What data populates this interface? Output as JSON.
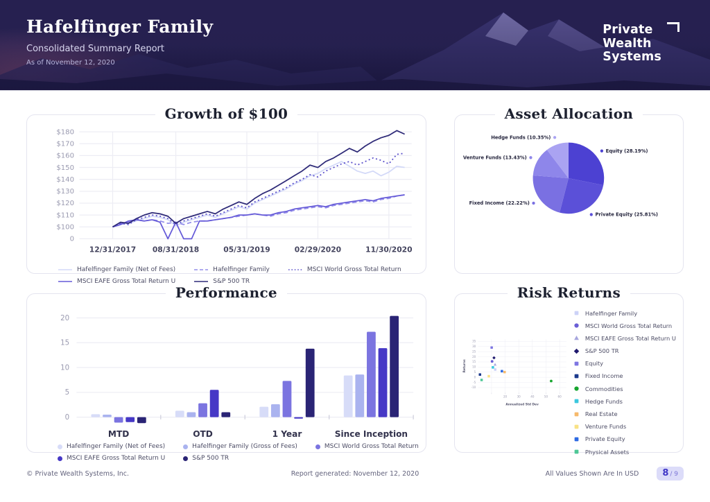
{
  "header": {
    "title": "Hafelfinger Family",
    "subtitle": "Consolidated Summary Report",
    "as_of": "As of November 12, 2020",
    "logo_lines": [
      "Private",
      "Wealth",
      "Systems"
    ]
  },
  "footer": {
    "copyright": "© Private Wealth Systems, Inc.",
    "generated": "Report generated: November 12, 2020",
    "values_note": "All Values Shown Are In USD",
    "page": "8",
    "of": "/ 9"
  },
  "chart_data": [
    {
      "type": "line",
      "title": "Growth of $100",
      "y_axis": {
        "tick_labels": [
          "$180",
          "$170",
          "$160",
          "$150",
          "$140",
          "$130",
          "$120",
          "$110",
          "$100",
          "0"
        ],
        "tick_values": [
          180,
          170,
          160,
          150,
          140,
          130,
          120,
          110,
          100,
          0
        ]
      },
      "x_axis": {
        "tick_labels": [
          "12/31/2017",
          "08/31/2018",
          "05/31/2019",
          "02/29/2020",
          "11/30/2020"
        ],
        "tick_indices": [
          0,
          8,
          17,
          26,
          35
        ]
      },
      "series": [
        {
          "name": "Hafelfinger Family (Net of Fees)",
          "style": "solid",
          "color": "#d3d9f8",
          "values": [
            100,
            102,
            103,
            105,
            107,
            109,
            108,
            106,
            101,
            104,
            106,
            108,
            110,
            108,
            111,
            114,
            117,
            115,
            120,
            123,
            126,
            129,
            132,
            136,
            139,
            143,
            145,
            149,
            152,
            155,
            151,
            147,
            145,
            147,
            143,
            146,
            151,
            150
          ]
        },
        {
          "name": "Hafelfinger Family",
          "style": "dashed",
          "color": "#948eea",
          "values": [
            100,
            103,
            104,
            106,
            105,
            106,
            105,
            103,
            104,
            102,
            104,
            105,
            105,
            106,
            107,
            108,
            109,
            110,
            111,
            110,
            109,
            111,
            112,
            114,
            115,
            116,
            117,
            116,
            118,
            119,
            120,
            121,
            122,
            121,
            123,
            124,
            126,
            127
          ]
        },
        {
          "name": "MSCI World Gross Total Return",
          "style": "dotted",
          "color": "#5b50cb",
          "values": [
            100,
            103,
            102,
            106,
            108,
            110,
            109,
            107,
            102,
            105,
            107,
            109,
            111,
            109,
            112,
            115,
            118,
            116,
            121,
            124,
            127,
            130,
            133,
            137,
            140,
            144,
            142,
            147,
            150,
            153,
            155,
            152,
            155,
            158,
            156,
            153,
            161,
            162
          ]
        },
        {
          "name": "MSCI EAFE Gross Total Return U",
          "style": "solid",
          "color": "#655ad8",
          "values": [
            100,
            102,
            105,
            106,
            105,
            106,
            104,
            95,
            104,
            0,
            0,
            105,
            105,
            106,
            107,
            108,
            110,
            110,
            111,
            110,
            110,
            112,
            113,
            115,
            116,
            117,
            118,
            117,
            119,
            120,
            121,
            122,
            123,
            122,
            124,
            125,
            126,
            127
          ]
        },
        {
          "name": "S&P 500 TR",
          "style": "solid",
          "color": "#2e2a78",
          "values": [
            100,
            104,
            103,
            107,
            110,
            112,
            111,
            109,
            103,
            107,
            109,
            111,
            113,
            111,
            115,
            118,
            121,
            119,
            124,
            128,
            131,
            135,
            139,
            143,
            147,
            152,
            150,
            155,
            158,
            162,
            166,
            163,
            168,
            172,
            175,
            177,
            181,
            178
          ]
        }
      ]
    },
    {
      "type": "pie",
      "title": "Asset Allocation",
      "slices": [
        {
          "label": "Equity",
          "pct": 28.19,
          "color": "#4c41d2"
        },
        {
          "label": "Private Equity",
          "pct": 25.81,
          "color": "#5b50d8"
        },
        {
          "label": "Fixed Income",
          "pct": 22.22,
          "color": "#7a70e2"
        },
        {
          "label": "Venture Funds",
          "pct": 13.43,
          "color": "#8e86ea"
        },
        {
          "label": "Hedge Funds",
          "pct": 10.35,
          "color": "#aaa3f2"
        }
      ]
    },
    {
      "type": "bar",
      "title": "Performance",
      "categories": [
        "MTD",
        "OTD",
        "1 Year",
        "Since Inception"
      ],
      "y_ticks": [
        0,
        5,
        10,
        15,
        20
      ],
      "series": [
        {
          "name": "Hafelfinger Family (Net of Fees)",
          "color": "#d7dcf8",
          "values": [
            0.6,
            1.3,
            2.1,
            8.4
          ]
        },
        {
          "name": "Hafelfinger Family (Gross of Fees)",
          "color": "#aab3ef",
          "values": [
            0.5,
            1.0,
            2.6,
            8.6
          ]
        },
        {
          "name": "MSCI World Gross Total Return",
          "color": "#7b74e0",
          "values": [
            -1.1,
            2.8,
            7.3,
            17.2
          ]
        },
        {
          "name": "MSCI EAFE Gross Total Return U",
          "color": "#4638c6",
          "values": [
            -1.0,
            5.5,
            -0.3,
            13.9
          ]
        },
        {
          "name": "S&P 500 TR",
          "color": "#2a2475",
          "values": [
            -1.2,
            1.0,
            13.8,
            20.4
          ]
        }
      ]
    },
    {
      "type": "scatter",
      "title": "Risk Returns",
      "xlabel": "Annualized Std Dev",
      "ylabel": "Returns",
      "xlim": [
        0,
        65
      ],
      "ylim": [
        -15,
        37
      ],
      "x_ticks": [
        20,
        30,
        40,
        50,
        60
      ],
      "y_ticks": [
        -10,
        -5,
        0,
        5,
        10,
        15,
        20,
        25,
        30,
        35
      ],
      "points": [
        {
          "label": "Hafelfinger Family",
          "x": 12.7,
          "y": 7.6,
          "shape": "square",
          "color": "#ccd2f7"
        },
        {
          "label": "MSCI World Gross Total Return",
          "x": 10.4,
          "y": 15.5,
          "shape": "circle",
          "color": "#6a5ed6"
        },
        {
          "label": "MSCI EAFE Gross Total Return U",
          "x": 12.6,
          "y": 12.5,
          "shape": "triangle",
          "color": "#a7a6de"
        },
        {
          "label": "S&P 500 TR",
          "x": 11.8,
          "y": 19,
          "shape": "diamond",
          "color": "#201a6e"
        },
        {
          "label": "Equity",
          "x": 10.1,
          "y": 29,
          "shape": "square",
          "color": "#7e76e2"
        },
        {
          "label": "Fixed Income",
          "x": 1.5,
          "y": 2.7,
          "shape": "square",
          "color": "#1b3a8c"
        },
        {
          "label": "Commodities",
          "x": 53.8,
          "y": -3.6,
          "shape": "circle",
          "color": "#17a52e"
        },
        {
          "label": "Hedge Funds",
          "x": 11.0,
          "y": 9.7,
          "shape": "square",
          "color": "#3cc8de"
        },
        {
          "label": "Real Estate",
          "x": 19.6,
          "y": 5.1,
          "shape": "square",
          "color": "#f6b96b"
        },
        {
          "label": "Venture Funds",
          "x": 8.0,
          "y": 1.1,
          "shape": "square",
          "color": "#f9e285"
        },
        {
          "label": "Private Equity",
          "x": 17.6,
          "y": 6.0,
          "shape": "square",
          "color": "#2d6ae3"
        },
        {
          "label": "Physical Assets",
          "x": 2.7,
          "y": -2.6,
          "shape": "square",
          "color": "#4ec796"
        }
      ]
    }
  ]
}
